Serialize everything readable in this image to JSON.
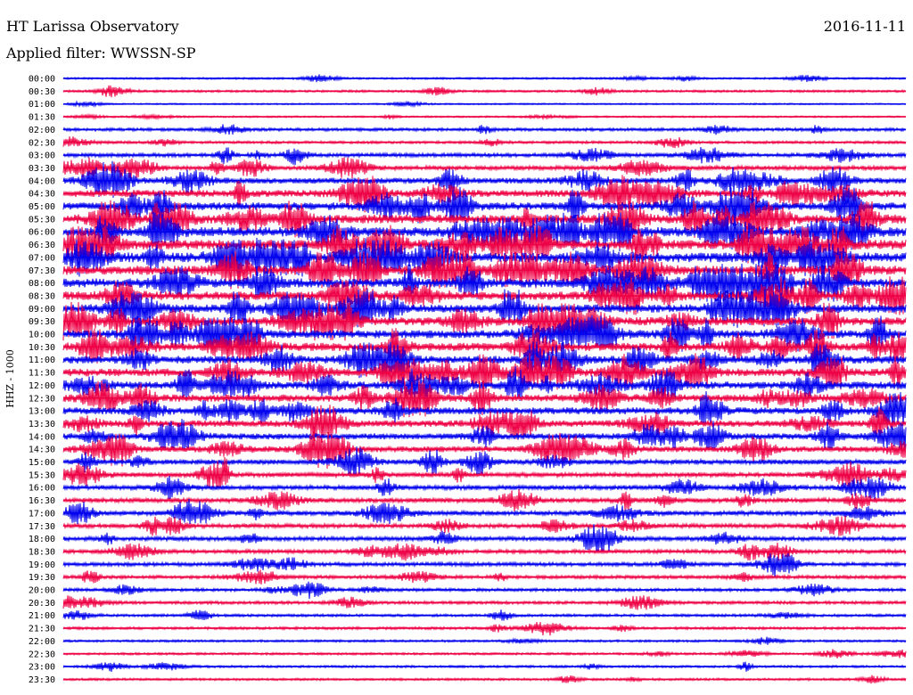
{
  "header": {
    "station": "HT Larissa Observatory",
    "date": "2016-11-11",
    "filter_label": "Applied filter: WWSSN-SP"
  },
  "chart_data": {
    "type": "line",
    "ylabel": "HHZ - 1000",
    "rows": [
      "00:00",
      "00:30",
      "01:00",
      "01:30",
      "02:00",
      "02:30",
      "03:00",
      "03:30",
      "04:00",
      "04:30",
      "05:00",
      "05:30",
      "06:00",
      "06:30",
      "07:00",
      "07:30",
      "08:00",
      "08:30",
      "09:00",
      "09:30",
      "10:00",
      "10:30",
      "11:00",
      "11:30",
      "12:00",
      "12:30",
      "13:00",
      "13:30",
      "14:00",
      "14:30",
      "15:00",
      "15:30",
      "16:00",
      "16:30",
      "17:00",
      "17:30",
      "18:00",
      "18:30",
      "19:00",
      "19:30",
      "20:00",
      "20:30",
      "21:00",
      "21:30",
      "22:00",
      "22:30",
      "23:00",
      "23:30"
    ],
    "amplitude": [
      0.6,
      0.8,
      0.4,
      0.5,
      1.2,
      1.0,
      1.6,
      1.8,
      2.6,
      3.2,
      3.6,
      4.2,
      4.4,
      4.6,
      4.6,
      4.4,
      4.2,
      4.0,
      3.8,
      3.8,
      3.8,
      3.8,
      3.6,
      3.6,
      3.4,
      3.4,
      3.2,
      3.0,
      2.8,
      2.6,
      2.2,
      2.0,
      2.0,
      2.0,
      2.0,
      1.8,
      1.8,
      1.6,
      1.6,
      1.4,
      1.2,
      1.2,
      1.0,
      1.0,
      0.8,
      0.8,
      0.8,
      0.8
    ],
    "series_colors": [
      "#0000ee",
      "#ee0044"
    ],
    "grid": false
  }
}
